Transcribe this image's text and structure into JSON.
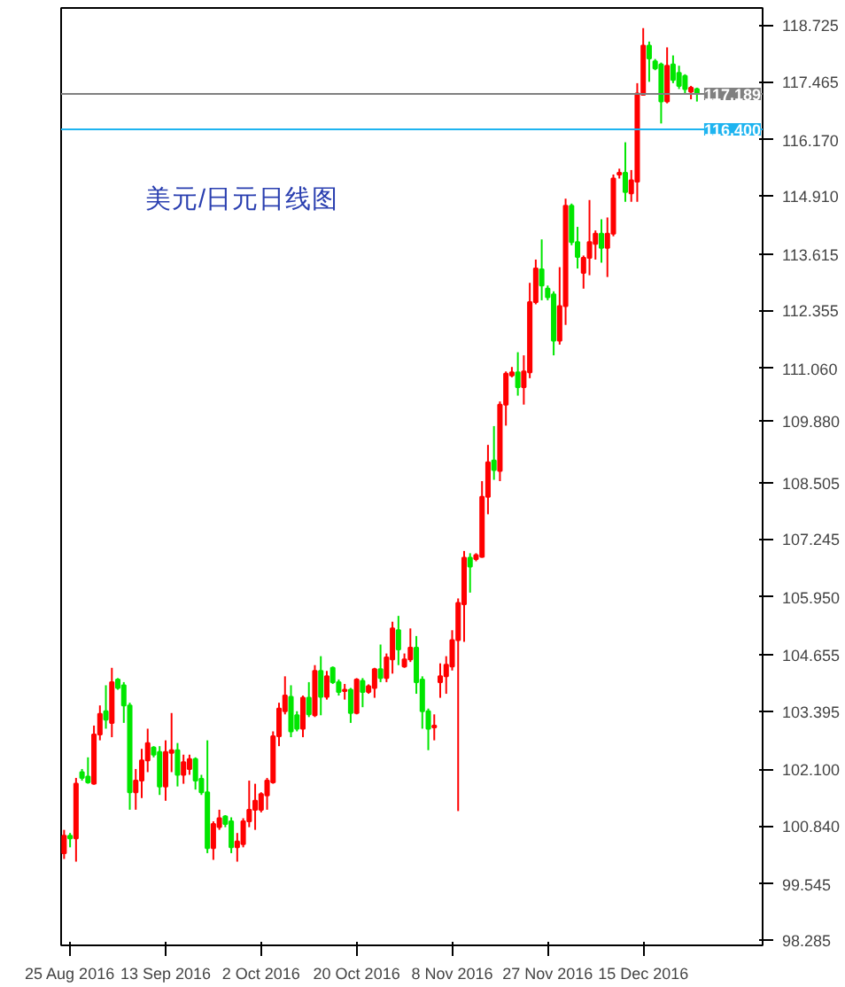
{
  "chart_data": {
    "type": "candlestick",
    "annotations": [
      "美元/日元日线图"
    ],
    "categories": [
      null,
      "25 Aug 2016",
      null,
      null,
      null,
      null,
      null,
      null,
      null,
      null,
      null,
      null,
      null,
      null,
      null,
      null,
      null,
      "13 Sep 2016",
      null,
      null,
      null,
      null,
      null,
      null,
      null,
      null,
      null,
      null,
      null,
      null,
      null,
      null,
      null,
      "2 Oct 2016",
      null,
      null,
      null,
      null,
      null,
      null,
      null,
      null,
      null,
      null,
      null,
      null,
      null,
      null,
      null,
      "20 Oct 2016",
      null,
      null,
      null,
      null,
      null,
      null,
      null,
      null,
      null,
      null,
      null,
      null,
      null,
      null,
      null,
      "8 Nov 2016",
      null,
      null,
      null,
      null,
      null,
      null,
      null,
      null,
      null,
      null,
      null,
      null,
      null,
      null,
      null,
      "27 Nov 2016",
      null,
      null,
      null,
      null,
      null,
      null,
      null,
      null,
      null,
      null,
      null,
      null,
      null,
      null,
      null,
      "15 Dec 2016",
      null,
      null,
      null,
      null,
      null,
      null,
      null,
      null,
      null
    ],
    "ohlc": [
      [
        100.23,
        100.75,
        100.1,
        100.62
      ],
      [
        100.62,
        100.68,
        100.36,
        100.56
      ],
      [
        100.56,
        101.91,
        100.04,
        101.78
      ],
      [
        102.04,
        102.11,
        101.85,
        101.91
      ],
      [
        101.94,
        102.37,
        101.78,
        101.81
      ],
      [
        101.78,
        103.08,
        101.76,
        102.88
      ],
      [
        102.88,
        103.53,
        102.75,
        103.34
      ],
      [
        103.4,
        103.98,
        103.01,
        103.21
      ],
      [
        103.14,
        104.37,
        102.82,
        104.05
      ],
      [
        104.11,
        104.14,
        103.88,
        103.92
      ],
      [
        103.98,
        104.05,
        103.14,
        103.53
      ],
      [
        103.53,
        103.59,
        101.2,
        101.59
      ],
      [
        101.59,
        102.11,
        101.2,
        101.85
      ],
      [
        101.85,
        102.56,
        101.46,
        102.3
      ],
      [
        102.3,
        103.01,
        102.04,
        102.69
      ],
      [
        102.59,
        102.62,
        102.37,
        102.43
      ],
      [
        102.49,
        102.62,
        101.53,
        101.72
      ],
      [
        101.72,
        102.75,
        101.4,
        102.49
      ],
      [
        102.47,
        103.36,
        102.04,
        102.53
      ],
      [
        102.53,
        102.69,
        101.72,
        101.98
      ],
      [
        101.98,
        102.43,
        101.78,
        102.26
      ],
      [
        102.11,
        102.43,
        101.98,
        102.33
      ],
      [
        102.33,
        102.37,
        101.65,
        101.85
      ],
      [
        101.89,
        101.98,
        101.53,
        101.59
      ],
      [
        101.59,
        102.75,
        100.23,
        100.34
      ],
      [
        100.34,
        100.94,
        100.08,
        100.88
      ],
      [
        100.81,
        101.2,
        100.75,
        101.01
      ],
      [
        101.05,
        101.08,
        100.81,
        100.88
      ],
      [
        100.94,
        101.03,
        100.23,
        100.36
      ],
      [
        100.36,
        100.68,
        100.04,
        100.49
      ],
      [
        100.43,
        101.01,
        100.36,
        100.94
      ],
      [
        100.94,
        101.85,
        100.81,
        101.2
      ],
      [
        101.2,
        101.78,
        100.75,
        101.4
      ],
      [
        101.2,
        101.59,
        101.14,
        101.55
      ],
      [
        101.52,
        101.91,
        101.2,
        101.85
      ],
      [
        101.81,
        102.95,
        101.78,
        102.84
      ],
      [
        102.84,
        103.59,
        102.62,
        103.46
      ],
      [
        103.4,
        104.18,
        103.33,
        103.75
      ],
      [
        103.72,
        103.98,
        102.82,
        102.95
      ],
      [
        103.31,
        103.4,
        102.95,
        103.01
      ],
      [
        103.01,
        103.75,
        102.82,
        103.7
      ],
      [
        103.7,
        104.05,
        103.27,
        103.33
      ],
      [
        103.31,
        104.43,
        103.27,
        104.3
      ],
      [
        104.3,
        104.63,
        103.31,
        103.72
      ],
      [
        103.72,
        104.3,
        103.66,
        104.18
      ],
      [
        104.37,
        104.4,
        104.01,
        104.05
      ],
      [
        104.05,
        104.11,
        103.75,
        103.83
      ],
      [
        103.85,
        104.01,
        103.66,
        103.88
      ],
      [
        103.88,
        103.92,
        103.14,
        103.36
      ],
      [
        103.36,
        104.14,
        103.33,
        104.11
      ],
      [
        104.08,
        104.14,
        103.49,
        103.83
      ],
      [
        103.83,
        104.0,
        103.79,
        103.96
      ],
      [
        103.92,
        104.37,
        103.7,
        104.34
      ],
      [
        104.34,
        104.89,
        104.05,
        104.14
      ],
      [
        104.14,
        104.69,
        104.05,
        104.6
      ],
      [
        104.56,
        105.4,
        104.24,
        105.25
      ],
      [
        105.21,
        105.53,
        104.43,
        104.78
      ],
      [
        104.4,
        104.69,
        104.37,
        104.56
      ],
      [
        104.56,
        105.25,
        104.5,
        104.82
      ],
      [
        104.82,
        105.08,
        103.79,
        104.05
      ],
      [
        104.11,
        104.18,
        103.01,
        103.4
      ],
      [
        103.4,
        103.46,
        102.53,
        103.01
      ],
      [
        103.04,
        103.33,
        102.75,
        103.08
      ],
      [
        104.05,
        104.47,
        103.7,
        104.18
      ],
      [
        104.18,
        104.63,
        103.79,
        104.44
      ],
      [
        104.4,
        105.21,
        104.31,
        104.99
      ],
      [
        104.99,
        105.92,
        101.17,
        105.82
      ],
      [
        105.79,
        106.98,
        104.95,
        106.83
      ],
      [
        106.83,
        106.93,
        106.05,
        106.63
      ],
      [
        106.8,
        106.93,
        106.75,
        106.89
      ],
      [
        106.85,
        108.54,
        106.83,
        108.19
      ],
      [
        108.19,
        109.35,
        107.8,
        108.96
      ],
      [
        109.0,
        109.77,
        108.57,
        108.79
      ],
      [
        108.77,
        110.32,
        108.54,
        110.25
      ],
      [
        110.25,
        110.99,
        109.78,
        110.94
      ],
      [
        110.9,
        111.09,
        110.86,
        110.97
      ],
      [
        110.97,
        111.42,
        110.45,
        110.64
      ],
      [
        110.64,
        111.35,
        110.25,
        110.99
      ],
      [
        110.97,
        112.97,
        110.84,
        112.54
      ],
      [
        112.54,
        113.49,
        112.49,
        113.29
      ],
      [
        113.27,
        113.94,
        112.58,
        112.91
      ],
      [
        112.84,
        112.91,
        112.58,
        112.65
      ],
      [
        112.71,
        112.78,
        111.35,
        111.68
      ],
      [
        111.68,
        113.32,
        111.59,
        112.45
      ],
      [
        112.45,
        114.85,
        112.03,
        114.69
      ],
      [
        114.69,
        114.74,
        113.81,
        113.88
      ],
      [
        113.88,
        114.22,
        113.29,
        113.55
      ],
      [
        113.19,
        113.58,
        112.84,
        113.53
      ],
      [
        113.53,
        114.82,
        113.14,
        113.88
      ],
      [
        113.84,
        114.14,
        113.49,
        114.07
      ],
      [
        114.07,
        114.39,
        113.42,
        113.75
      ],
      [
        113.75,
        114.43,
        113.1,
        114.07
      ],
      [
        114.07,
        115.39,
        114.01,
        115.3
      ],
      [
        115.39,
        115.52,
        115.3,
        115.43
      ],
      [
        115.43,
        116.11,
        114.78,
        115.0
      ],
      [
        114.97,
        115.49,
        114.78,
        115.26
      ],
      [
        115.23,
        117.43,
        114.78,
        117.2
      ],
      [
        117.17,
        118.66,
        117.15,
        118.27
      ],
      [
        118.27,
        118.36,
        117.46,
        117.98
      ],
      [
        117.92,
        117.97,
        117.72,
        117.76
      ],
      [
        117.85,
        117.89,
        116.53,
        117.02
      ],
      [
        117.02,
        118.23,
        116.98,
        117.82
      ],
      [
        117.85,
        118.05,
        117.43,
        117.5
      ],
      [
        117.66,
        117.82,
        117.3,
        117.37
      ],
      [
        117.59,
        117.63,
        117.17,
        117.3
      ],
      [
        117.24,
        117.37,
        117.07,
        117.33
      ],
      [
        117.3,
        117.33,
        117.02,
        117.2
      ]
    ],
    "colors": [
      "#ff0000",
      "#00e600",
      "#ff0000",
      "#00e600",
      "#00e600",
      "#ff0000",
      "#ff0000",
      "#00e600",
      "#ff0000",
      "#00e600",
      "#00e600",
      "#00e600",
      "#ff0000",
      "#ff0000",
      "#ff0000",
      "#00e600",
      "#00e600",
      "#ff0000",
      "#ff0000",
      "#00e600",
      "#ff0000",
      "#ff0000",
      "#00e600",
      "#00e600",
      "#00e600",
      "#ff0000",
      "#ff0000",
      "#00e600",
      "#00e600",
      "#ff0000",
      "#ff0000",
      "#ff0000",
      "#ff0000",
      "#ff0000",
      "#ff0000",
      "#ff0000",
      "#ff0000",
      "#ff0000",
      "#00e600",
      "#00e600",
      "#ff0000",
      "#00e600",
      "#ff0000",
      "#00e600",
      "#ff0000",
      "#00e600",
      "#00e600",
      "#ff0000",
      "#00e600",
      "#ff0000",
      "#00e600",
      "#ff0000",
      "#ff0000",
      "#00e600",
      "#ff0000",
      "#ff0000",
      "#00e600",
      "#ff0000",
      "#ff0000",
      "#00e600",
      "#00e600",
      "#00e600",
      "#ff0000",
      "#ff0000",
      "#ff0000",
      "#ff0000",
      "#ff0000",
      "#ff0000",
      "#00e600",
      "#ff0000",
      "#ff0000",
      "#ff0000",
      "#00e600",
      "#ff0000",
      "#ff0000",
      "#ff0000",
      "#00e600",
      "#ff0000",
      "#ff0000",
      "#ff0000",
      "#00e600",
      "#00e600",
      "#00e600",
      "#ff0000",
      "#ff0000",
      "#00e600",
      "#00e600",
      "#ff0000",
      "#ff0000",
      "#ff0000",
      "#00e600",
      "#ff0000",
      "#ff0000",
      "#ff0000",
      "#00e600",
      "#ff0000",
      "#ff0000",
      "#ff0000",
      "#00e600",
      "#00e600",
      "#00e600",
      "#ff0000",
      "#00e600",
      "#00e600",
      "#00e600",
      "#ff0000",
      "#00e600"
    ],
    "ylim": [
      98.17,
      119.11
    ],
    "yticks": [
      118.725,
      117.465,
      {
        "value": 116.17,
        "label": "116.170"
      },
      {
        "value": 114.91,
        "label": "114.910"
      },
      113.615,
      112.355,
      {
        "value": 111.06,
        "label": "111.060"
      },
      {
        "value": 109.88,
        "label": "109.880"
      },
      108.505,
      107.245,
      {
        "value": 105.95,
        "label": "105.950"
      },
      104.655,
      103.395,
      {
        "value": 102.1,
        "label": "102.100"
      },
      {
        "value": 100.84,
        "label": "100.840"
      },
      99.545,
      98.285
    ],
    "ref_lines": [
      {
        "axis": "y",
        "value": 117.189,
        "label": "117.189",
        "color": "#808080"
      },
      {
        "axis": "y",
        "value": 116.4,
        "label": "116.400",
        "color": "#1eb4f0"
      }
    ]
  }
}
